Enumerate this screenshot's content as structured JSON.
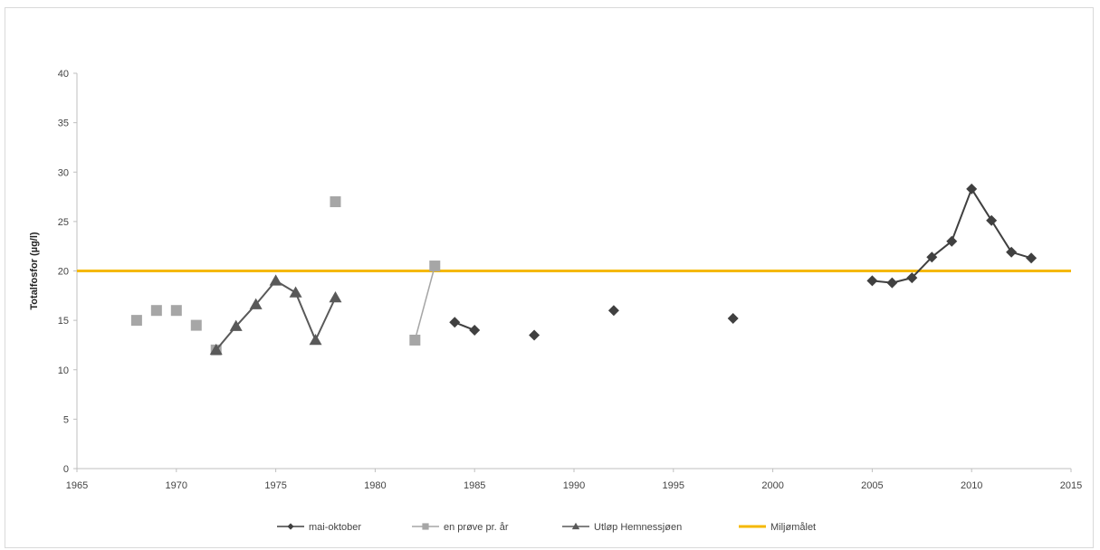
{
  "chart_data": {
    "type": "line",
    "title": "",
    "xlabel": "",
    "ylabel": "Totalfosfor (µg/l)",
    "xlim": [
      1965,
      2015
    ],
    "ylim": [
      0,
      40
    ],
    "x_ticks": [
      1965,
      1970,
      1975,
      1980,
      1985,
      1990,
      1995,
      2000,
      2005,
      2010,
      2015
    ],
    "y_ticks": [
      0,
      5,
      10,
      15,
      20,
      25,
      30,
      35,
      40
    ],
    "grid": false,
    "legend_position": "bottom",
    "series": [
      {
        "name": "mai-oktober",
        "marker": "diamond",
        "color": "#404040",
        "points": [
          {
            "x": 1984,
            "y": 14.8
          },
          {
            "x": 1985,
            "y": 14.0
          },
          {
            "x": 1988,
            "y": 13.5
          },
          {
            "x": 1992,
            "y": 16.0
          },
          {
            "x": 1998,
            "y": 15.2
          },
          {
            "x": 2005,
            "y": 19.0
          },
          {
            "x": 2006,
            "y": 18.8
          },
          {
            "x": 2007,
            "y": 19.3
          },
          {
            "x": 2008,
            "y": 21.4
          },
          {
            "x": 2009,
            "y": 23.0
          },
          {
            "x": 2010,
            "y": 28.3
          },
          {
            "x": 2011,
            "y": 25.1
          },
          {
            "x": 2012,
            "y": 21.9
          },
          {
            "x": 2013,
            "y": 21.3
          }
        ],
        "segments": [
          [
            0,
            1
          ],
          [
            5,
            6,
            7,
            8,
            9,
            10,
            11,
            12,
            13
          ]
        ]
      },
      {
        "name": "en prøve pr. år",
        "marker": "square",
        "color": "#a6a6a6",
        "points": [
          {
            "x": 1968,
            "y": 15.0
          },
          {
            "x": 1969,
            "y": 16.0
          },
          {
            "x": 1970,
            "y": 16.0
          },
          {
            "x": 1971,
            "y": 14.5
          },
          {
            "x": 1972,
            "y": 12.0
          },
          {
            "x": 1978,
            "y": 27.0
          },
          {
            "x": 1982,
            "y": 13.0
          },
          {
            "x": 1983,
            "y": 20.5
          }
        ],
        "segments": [
          [
            6,
            7
          ]
        ]
      },
      {
        "name": "Utløp Hemnessjøen",
        "marker": "triangle",
        "color": "#595959",
        "points": [
          {
            "x": 1972,
            "y": 12.0
          },
          {
            "x": 1973,
            "y": 14.4
          },
          {
            "x": 1974,
            "y": 16.6
          },
          {
            "x": 1975,
            "y": 19.0
          },
          {
            "x": 1976,
            "y": 17.8
          },
          {
            "x": 1977,
            "y": 13.0
          },
          {
            "x": 1978,
            "y": 17.3
          }
        ],
        "segments": [
          [
            0,
            1,
            2,
            3,
            4,
            5,
            6
          ]
        ]
      },
      {
        "name": "Miljømålet",
        "marker": "none",
        "color": "#f5b800",
        "points": [
          {
            "x": 1965,
            "y": 20.0
          },
          {
            "x": 2015,
            "y": 20.0
          }
        ],
        "segments": [
          [
            0,
            1
          ]
        ]
      }
    ]
  }
}
